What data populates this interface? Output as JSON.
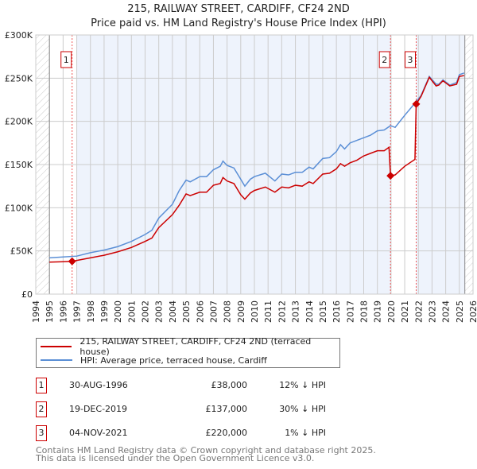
{
  "title": "215, RAILWAY STREET, CARDIFF, CF24 2ND",
  "subtitle": "Price paid vs. HM Land Registry's House Price Index (HPI)",
  "colors": {
    "property": "#cc0000",
    "hpi": "#5b8fd6",
    "shade": "#eef3fc"
  },
  "chart_data": {
    "type": "line",
    "xlim": [
      1994,
      2026
    ],
    "ylim": [
      0,
      300000
    ],
    "x_ticks": [
      1994,
      1995,
      1996,
      1997,
      1998,
      1999,
      2000,
      2001,
      2002,
      2003,
      2004,
      2005,
      2006,
      2007,
      2008,
      2009,
      2010,
      2011,
      2012,
      2013,
      2014,
      2015,
      2016,
      2017,
      2018,
      2019,
      2020,
      2021,
      2022,
      2023,
      2024,
      2025,
      2026
    ],
    "y_ticks": [
      {
        "v": 0,
        "label": "£0"
      },
      {
        "v": 50000,
        "label": "£50K"
      },
      {
        "v": 100000,
        "label": "£100K"
      },
      {
        "v": 150000,
        "label": "£150K"
      },
      {
        "v": 200000,
        "label": "£200K"
      },
      {
        "v": 250000,
        "label": "£250K"
      },
      {
        "v": 300000,
        "label": "£300K"
      }
    ],
    "grid": true,
    "series": [
      {
        "name": "215, RAILWAY STREET, CARDIFF, CF24 2ND (terraced house)",
        "color": "#cc0000",
        "points": [
          [
            1995,
            37
          ],
          [
            1996,
            37.5
          ],
          [
            1996.66,
            38
          ],
          [
            1997,
            39
          ],
          [
            1998,
            42
          ],
          [
            1999,
            45
          ],
          [
            2000,
            49
          ],
          [
            2001,
            54
          ],
          [
            2002,
            61
          ],
          [
            2002.5,
            65
          ],
          [
            2003,
            77
          ],
          [
            2004,
            92
          ],
          [
            2004.5,
            103
          ],
          [
            2005,
            116
          ],
          [
            2005.3,
            114
          ],
          [
            2006,
            118
          ],
          [
            2006.5,
            118
          ],
          [
            2007,
            126
          ],
          [
            2007.5,
            128
          ],
          [
            2007.7,
            135
          ],
          [
            2008,
            131
          ],
          [
            2008.5,
            128
          ],
          [
            2009,
            115
          ],
          [
            2009.3,
            110
          ],
          [
            2009.7,
            117
          ],
          [
            2010,
            120
          ],
          [
            2010.8,
            124
          ],
          [
            2011.5,
            118
          ],
          [
            2012,
            124
          ],
          [
            2012.5,
            123
          ],
          [
            2013,
            126
          ],
          [
            2013.5,
            125
          ],
          [
            2014,
            130
          ],
          [
            2014.3,
            128
          ],
          [
            2015,
            139
          ],
          [
            2015.5,
            140
          ],
          [
            2016,
            145
          ],
          [
            2016.3,
            151
          ],
          [
            2016.6,
            148
          ],
          [
            2017,
            152
          ],
          [
            2017.5,
            155
          ],
          [
            2018,
            160
          ],
          [
            2018.5,
            163
          ],
          [
            2019,
            166
          ],
          [
            2019.5,
            166
          ],
          [
            2019.85,
            170
          ],
          [
            2019.96,
            137
          ],
          [
            2020.3,
            138
          ],
          [
            2021,
            148
          ],
          [
            2021.75,
            156
          ],
          [
            2021.84,
            220
          ],
          [
            2022.2,
            229
          ],
          [
            2022.8,
            251
          ],
          [
            2023.3,
            241
          ],
          [
            2023.5,
            242
          ],
          [
            2023.8,
            247
          ],
          [
            2024.3,
            241
          ],
          [
            2024.8,
            243
          ],
          [
            2025,
            252
          ],
          [
            2025.35,
            253
          ]
        ]
      },
      {
        "name": "HPI: Average price, terraced house, Cardiff",
        "color": "#5b8fd6",
        "points": [
          [
            1995,
            42
          ],
          [
            1996,
            43
          ],
          [
            1997,
            44
          ],
          [
            1998,
            48
          ],
          [
            1999,
            51
          ],
          [
            2000,
            55
          ],
          [
            2001,
            61
          ],
          [
            2002,
            69
          ],
          [
            2002.5,
            74
          ],
          [
            2003,
            88
          ],
          [
            2004,
            104
          ],
          [
            2004.5,
            120
          ],
          [
            2005,
            132
          ],
          [
            2005.3,
            130
          ],
          [
            2006,
            136
          ],
          [
            2006.5,
            136
          ],
          [
            2007,
            144
          ],
          [
            2007.5,
            148
          ],
          [
            2007.7,
            154
          ],
          [
            2008,
            149
          ],
          [
            2008.5,
            146
          ],
          [
            2009,
            133
          ],
          [
            2009.3,
            125
          ],
          [
            2009.7,
            133
          ],
          [
            2010,
            136
          ],
          [
            2010.8,
            140
          ],
          [
            2011.5,
            131
          ],
          [
            2012,
            139
          ],
          [
            2012.5,
            138
          ],
          [
            2013,
            141
          ],
          [
            2013.5,
            141
          ],
          [
            2014,
            147
          ],
          [
            2014.3,
            145
          ],
          [
            2015,
            157
          ],
          [
            2015.5,
            158
          ],
          [
            2016,
            165
          ],
          [
            2016.3,
            173
          ],
          [
            2016.6,
            168
          ],
          [
            2017,
            175
          ],
          [
            2017.5,
            178
          ],
          [
            2018,
            181
          ],
          [
            2018.5,
            184
          ],
          [
            2019,
            189
          ],
          [
            2019.5,
            190
          ],
          [
            2019.96,
            195
          ],
          [
            2020.3,
            193
          ],
          [
            2021,
            207
          ],
          [
            2021.8,
            222
          ],
          [
            2022.2,
            230
          ],
          [
            2022.8,
            252
          ],
          [
            2023.3,
            243
          ],
          [
            2023.5,
            243
          ],
          [
            2023.8,
            248
          ],
          [
            2024.3,
            242
          ],
          [
            2024.8,
            245
          ],
          [
            2025,
            254
          ],
          [
            2025.35,
            256
          ]
        ]
      }
    ],
    "sales": [
      {
        "label": "1",
        "x": 1996.66,
        "price": 38000
      },
      {
        "label": "2",
        "x": 2019.96,
        "price": 137000
      },
      {
        "label": "3",
        "x": 2021.84,
        "price": 220000
      }
    ],
    "shaded_ranges": [
      [
        1997,
        2019.96
      ],
      [
        2021.84,
        2025.4
      ]
    ],
    "hatched_ranges": [
      [
        1994,
        1995
      ],
      [
        2025.4,
        2026
      ]
    ],
    "legend_placement": "below"
  },
  "legend": {
    "property": "215, RAILWAY STREET, CARDIFF, CF24 2ND (terraced house)",
    "hpi": "HPI: Average price, terraced house, Cardiff"
  },
  "transactions": [
    {
      "num": "1",
      "date": "30-AUG-1996",
      "price": "£38,000",
      "hpi": "12% ↓ HPI"
    },
    {
      "num": "2",
      "date": "19-DEC-2019",
      "price": "£137,000",
      "hpi": "30% ↓ HPI"
    },
    {
      "num": "3",
      "date": "04-NOV-2021",
      "price": "£220,000",
      "hpi": "1% ↓ HPI"
    }
  ],
  "footer": {
    "line1": "Contains HM Land Registry data © Crown copyright and database right 2025.",
    "line2": "This data is licensed under the Open Government Licence v3.0."
  }
}
